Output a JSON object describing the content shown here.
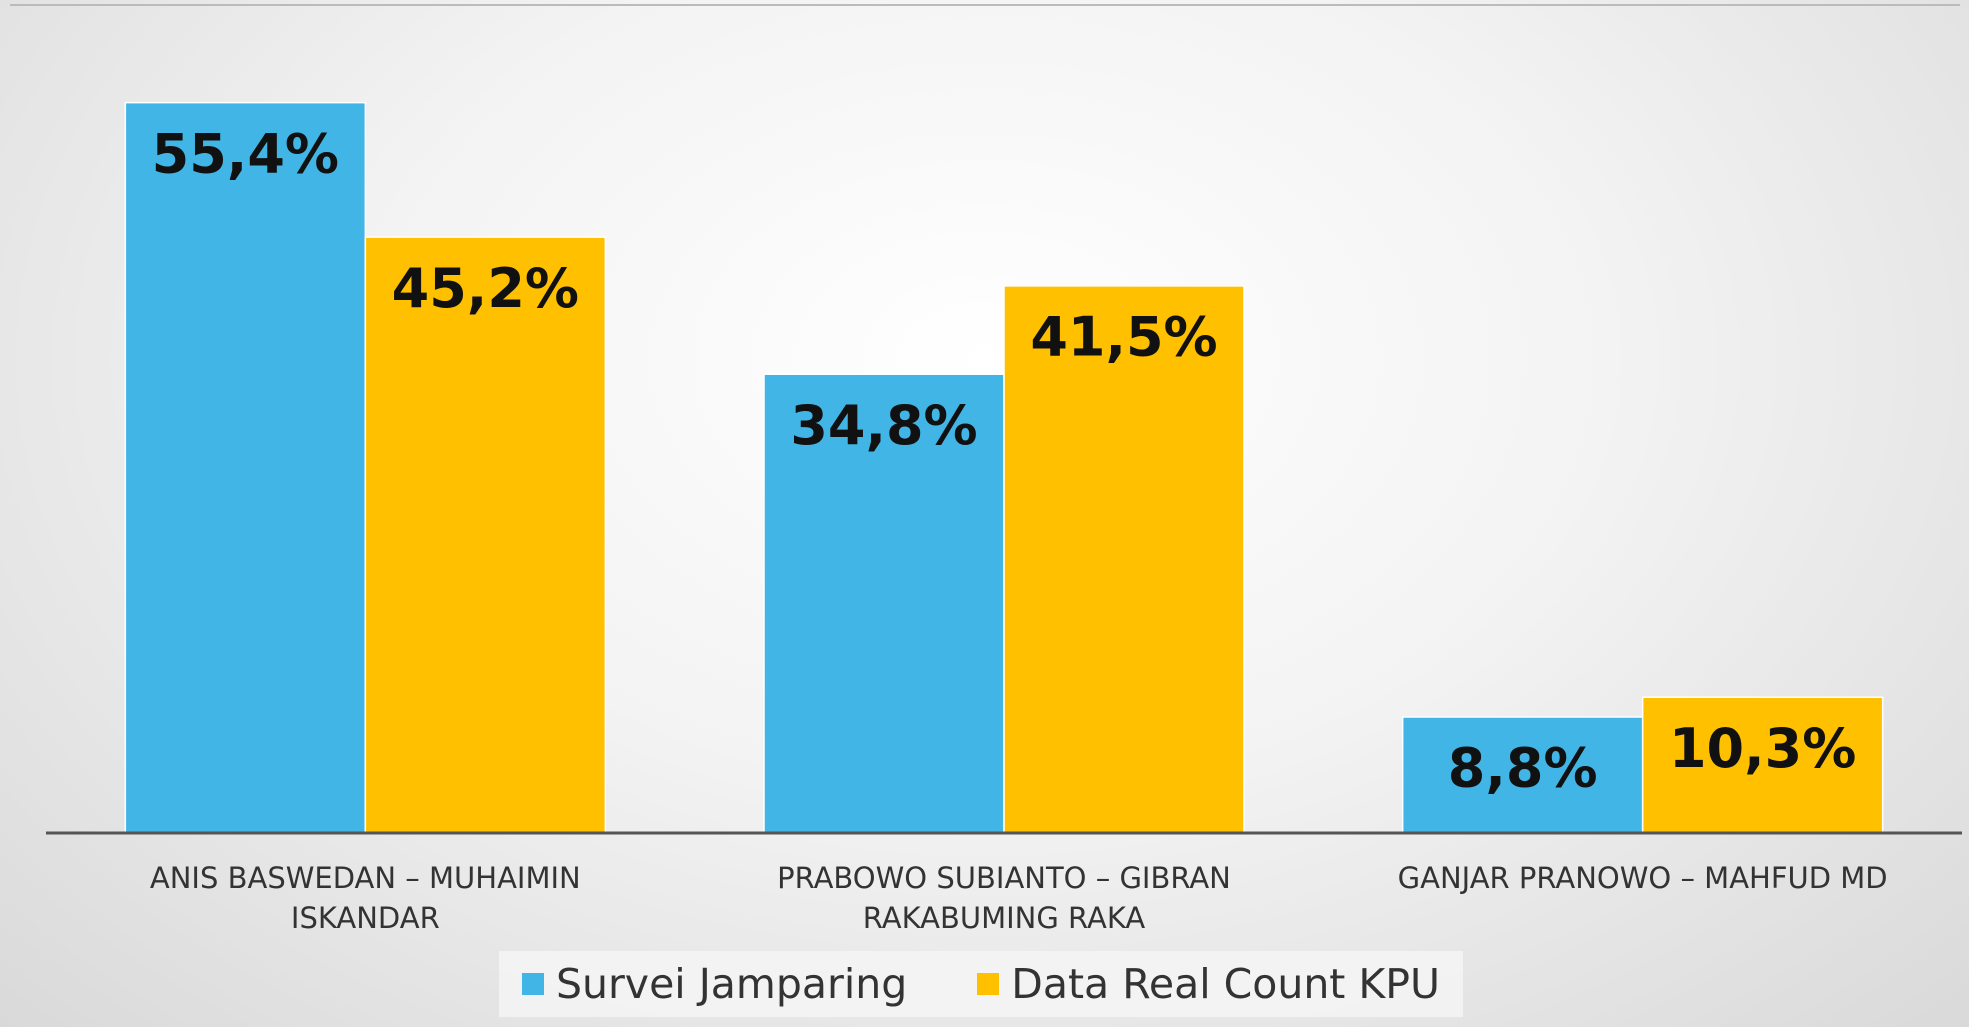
{
  "chart_data": {
    "type": "bar",
    "categories": [
      "ANIS BASWEDAN – MUHAIMIN ISKANDAR",
      "PRABOWO SUBIANTO – GIBRAN RAKABUMING RAKA",
      "GANJAR PRANOWO – MAHFUD MD"
    ],
    "series": [
      {
        "name": "Survei Jamparing",
        "color": "#41b6e6",
        "values": [
          55.4,
          34.8,
          8.8
        ],
        "value_labels": [
          "55,4%",
          "34,8%",
          "8,8%"
        ]
      },
      {
        "name": "Data Real Count KPU",
        "color": "#ffc000",
        "values": [
          45.2,
          41.5,
          10.3
        ],
        "value_labels": [
          "45,2%",
          "41,5%",
          "10,3%"
        ]
      }
    ],
    "ylim": [
      0,
      60
    ]
  }
}
